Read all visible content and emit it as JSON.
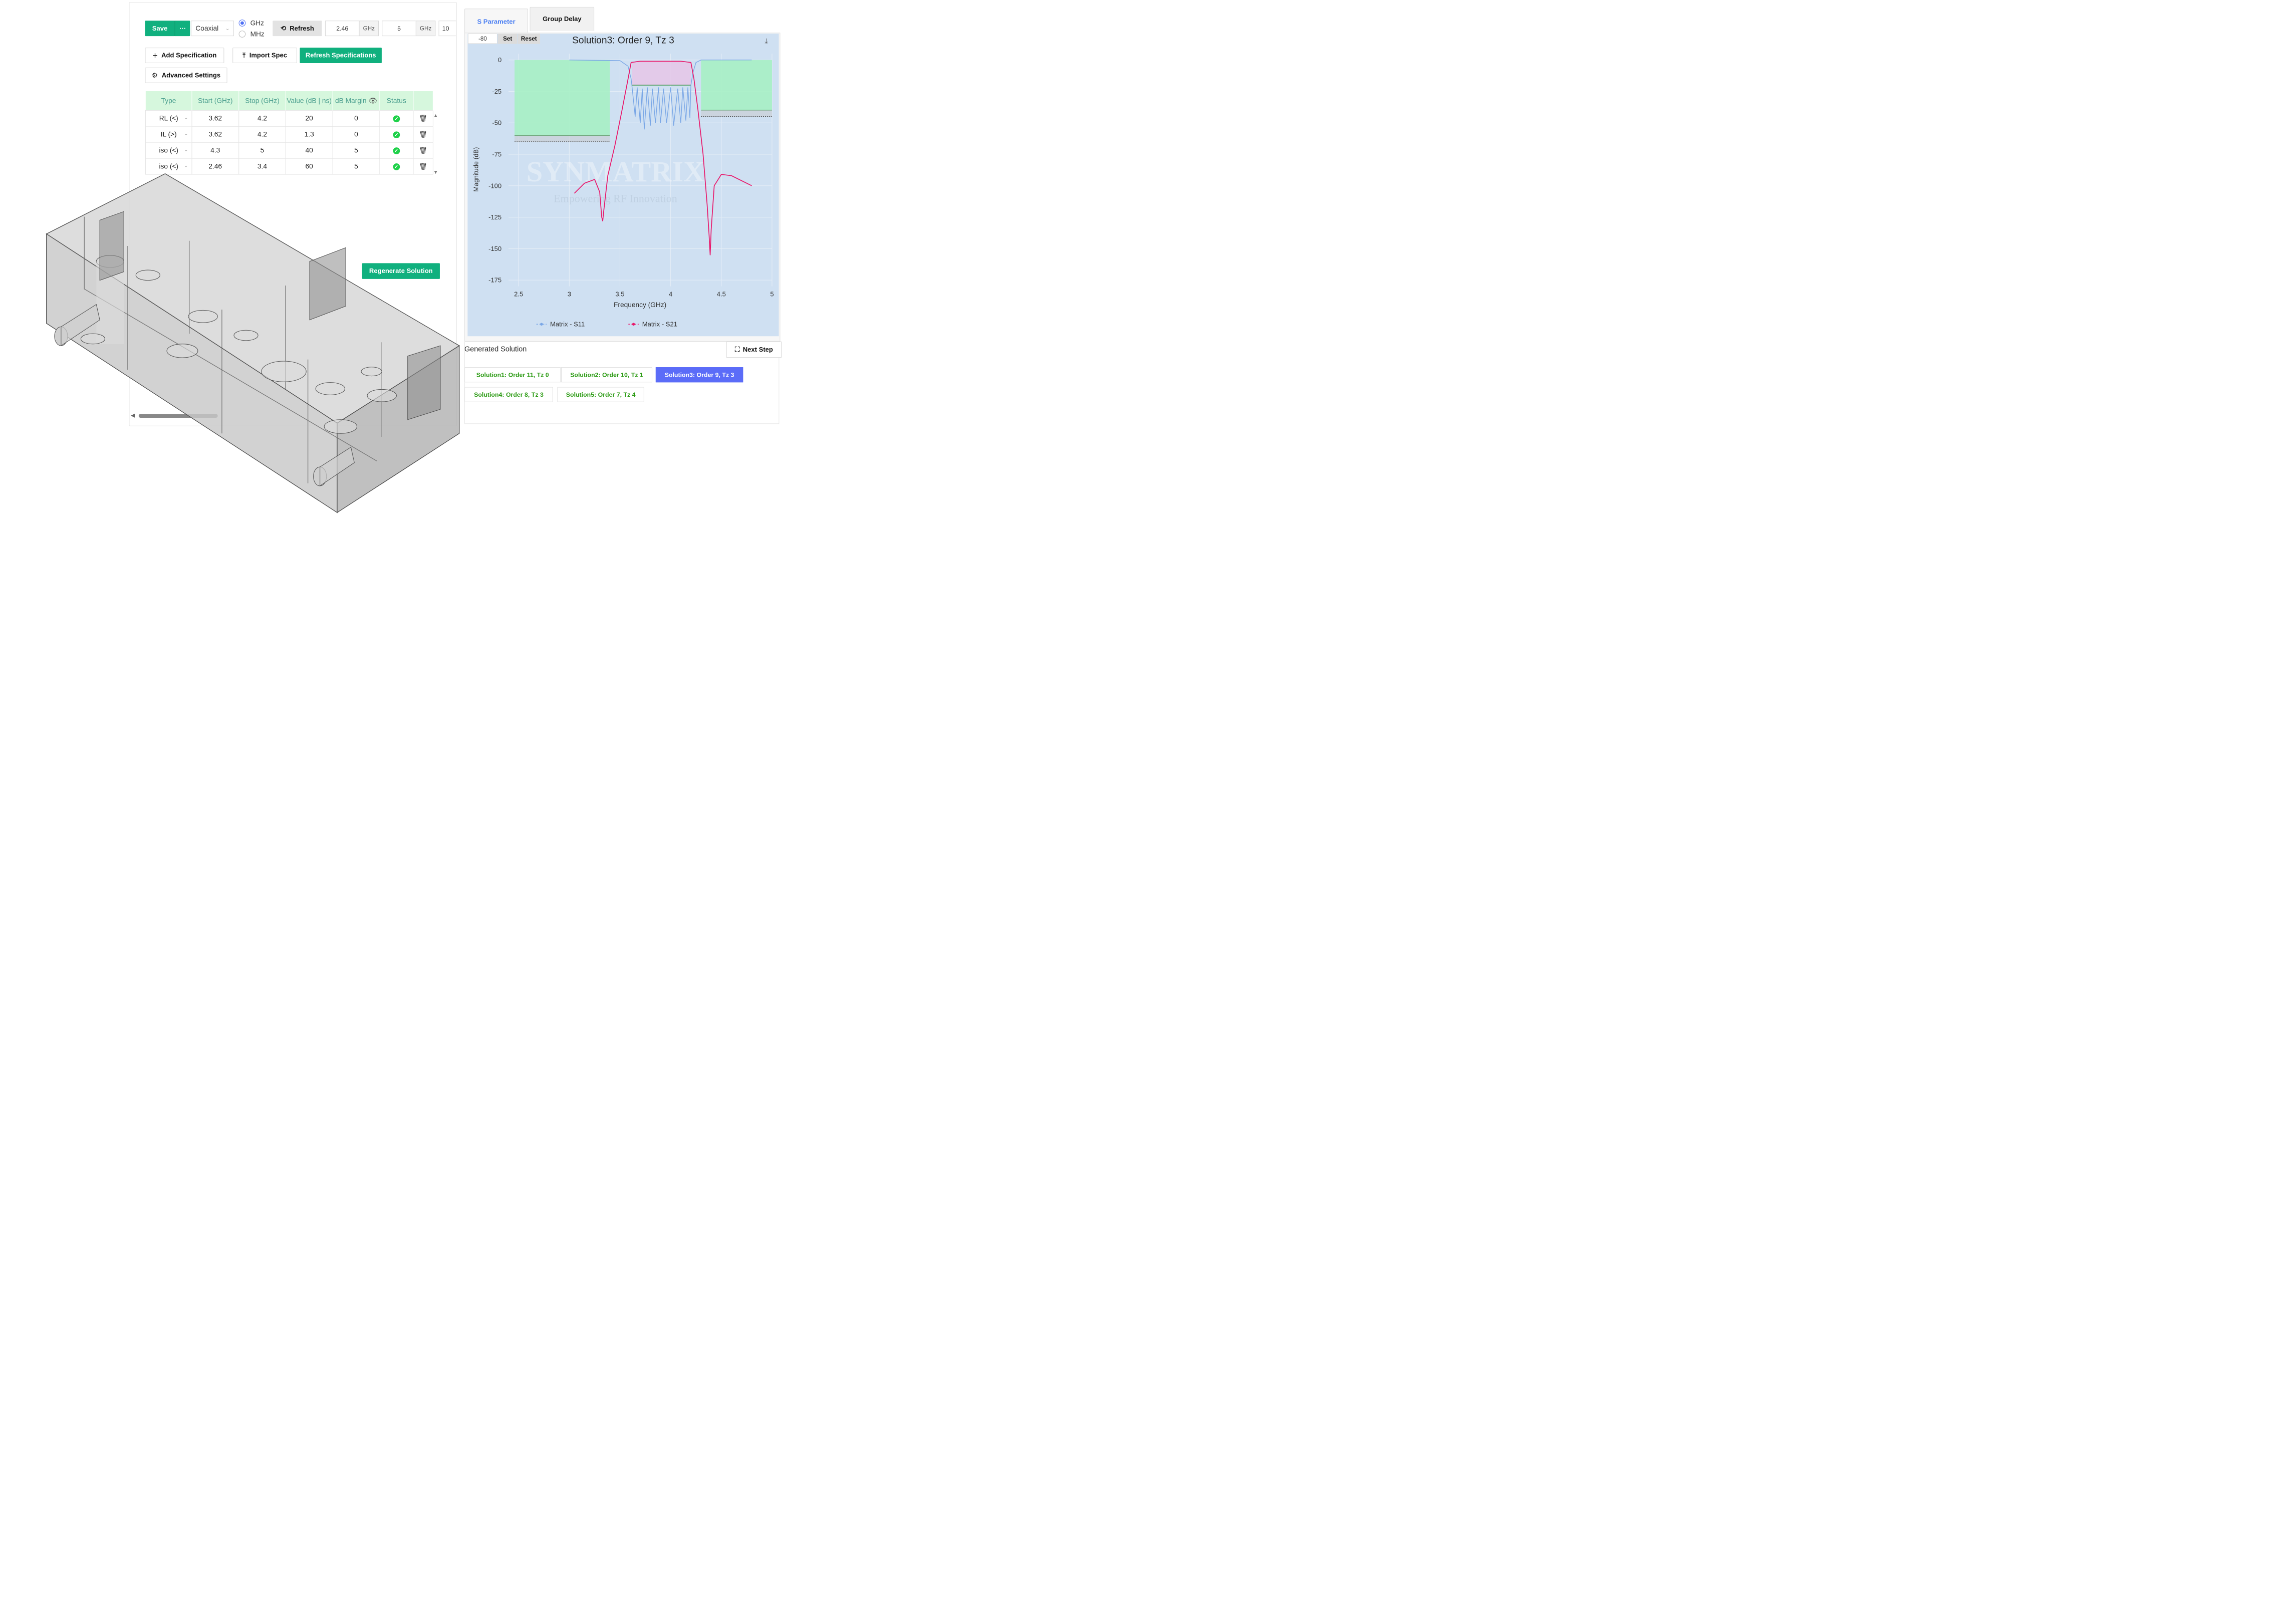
{
  "toolbar": {
    "save_label": "Save",
    "more_label": "⋯",
    "type_select": "Coaxial",
    "unit_ghz": "GHz",
    "unit_mhz": "MHz",
    "refresh_label": "Refresh",
    "start_value": "2.46",
    "start_unit": "GHz",
    "stop_value": "5",
    "stop_unit": "GHz",
    "points_value": "10"
  },
  "actions": {
    "add_spec": "Add Specification",
    "import_spec": "Import Spec",
    "refresh_specs": "Refresh Specifications",
    "advanced": "Advanced Settings",
    "regenerate": "Regenerate Solution"
  },
  "spec_table": {
    "headers": [
      "Type",
      "Start (GHz)",
      "Stop (GHz)",
      "Value (dB | ns)",
      "dB Margin",
      "Status"
    ],
    "rows": [
      {
        "type": "RL (<)",
        "start": "3.62",
        "stop": "4.2",
        "value": "20",
        "margin": "0"
      },
      {
        "type": "IL (>)",
        "start": "3.62",
        "stop": "4.2",
        "value": "1.3",
        "margin": "0"
      },
      {
        "type": "iso (<)",
        "start": "4.3",
        "stop": "5",
        "value": "40",
        "margin": "5"
      },
      {
        "type": "iso (<)",
        "start": "2.46",
        "stop": "3.4",
        "value": "60",
        "margin": "5"
      }
    ]
  },
  "tabs": {
    "s_param": "S Parameter",
    "group_delay": "Group Delay"
  },
  "chart_controls": {
    "ymin_value": "-80",
    "set_label": "Set",
    "reset_label": "Reset"
  },
  "watermark": {
    "brand": "SYNMATRIX",
    "tagline": "Empowering RF Innovation"
  },
  "chart_data": {
    "type": "line",
    "title": "Solution3: Order 9, Tz 3",
    "xlabel": "Frequency (GHz)",
    "ylabel": "Magnitude (dB)",
    "xlim": [
      2.4,
      5.0
    ],
    "ylim": [
      -180,
      5
    ],
    "xticks": [
      "2.5",
      "3",
      "3.5",
      "4",
      "4.5",
      "5"
    ],
    "xtick_values": [
      2.5,
      3,
      3.5,
      4,
      4.5,
      5
    ],
    "yticks": [
      "0",
      "-25",
      "-50",
      "-75",
      "-100",
      "-125",
      "-150",
      "-175"
    ],
    "ytick_values": [
      0,
      -25,
      -50,
      -75,
      -100,
      -125,
      -150,
      -175
    ],
    "grid": true,
    "legend": "bottom",
    "series": [
      {
        "name": "Matrix - S11",
        "color": "#7aa7e6",
        "x": [
          3.0,
          3.5,
          3.58,
          3.61,
          3.62,
          3.65,
          3.67,
          3.7,
          3.72,
          3.74,
          3.77,
          3.8,
          3.82,
          3.85,
          3.88,
          3.9,
          3.93,
          3.96,
          4.0,
          4.03,
          4.07,
          4.1,
          4.12,
          4.15,
          4.17,
          4.19,
          4.2,
          4.22,
          4.25,
          4.3,
          4.8
        ],
        "y": [
          0,
          -0.5,
          -5,
          -15,
          -22,
          -45,
          -22,
          -50,
          -23,
          -55,
          -22,
          -52,
          -23,
          -50,
          -22,
          -50,
          -23,
          -50,
          -22,
          -52,
          -23,
          -50,
          -22,
          -48,
          -22,
          -46,
          -20,
          -10,
          -2,
          0,
          0
        ]
      },
      {
        "name": "Matrix - S21",
        "color": "#e8186b",
        "x": [
          3.05,
          3.15,
          3.25,
          3.3,
          3.32,
          3.33,
          3.34,
          3.38,
          3.45,
          3.52,
          3.58,
          3.61,
          3.7,
          3.9,
          4.1,
          4.2,
          4.23,
          4.27,
          4.32,
          4.36,
          4.38,
          4.39,
          4.4,
          4.43,
          4.5,
          4.6,
          4.8
        ],
        "y": [
          -106,
          -98,
          -95,
          -105,
          -125,
          -128,
          -120,
          -92,
          -68,
          -40,
          -15,
          -2,
          -1,
          -1,
          -1,
          -2,
          -15,
          -40,
          -75,
          -115,
          -140,
          -155,
          -135,
          -100,
          -91,
          -92,
          -100
        ]
      }
    ],
    "masks": [
      {
        "x0": 2.46,
        "x1": 3.4,
        "y_top": 0,
        "y_line": -60,
        "y_dash": -65,
        "fill": "#a6f0c4"
      },
      {
        "x0": 4.3,
        "x1": 5.0,
        "y_top": 0,
        "y_line": -40,
        "y_dash": -45,
        "fill": "#a6f0c4"
      },
      {
        "x0": 3.62,
        "x1": 4.2,
        "y_top": -1.3,
        "y_line": -20,
        "fill": "#e4c8e8"
      }
    ]
  },
  "solutions": {
    "section_title": "Generated Solution",
    "next_step": "Next Step",
    "items": [
      "Solution1: Order 11, Tz 0",
      "Solution2: Order 10, Tz 1",
      "Solution3: Order 9, Tz 3",
      "Solution4: Order 8, Tz 3",
      "Solution5: Order 7, Tz 4"
    ]
  }
}
